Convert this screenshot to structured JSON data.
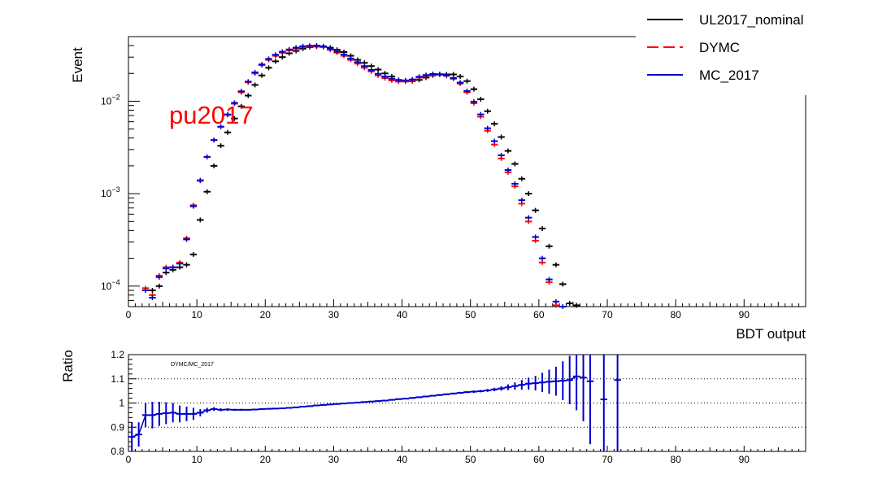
{
  "chart_data": [
    {
      "type": "line",
      "ylabel": "Event",
      "xlabel": "BDT output",
      "annotation": "pu2017",
      "annotation_color": "#ff0000",
      "log_y": true,
      "xlim": [
        0,
        99
      ],
      "ylim": [
        6e-05,
        0.05
      ],
      "x_ticks": [
        0,
        10,
        20,
        30,
        40,
        50,
        60,
        70,
        80,
        90
      ],
      "y_tick_labels": [
        {
          "value": 0.0001,
          "base": "10",
          "exp": "−4"
        },
        {
          "value": 0.001,
          "base": "10",
          "exp": "−3"
        },
        {
          "value": 0.01,
          "base": "10",
          "exp": "−2"
        }
      ],
      "legend_position": "top-right",
      "series": [
        {
          "name": "UL2017_nominal",
          "color": "#000000",
          "style": "solid",
          "x": [
            3.5,
            4.5,
            5.5,
            6.5,
            7.5,
            8.5,
            9.5,
            10.5,
            11.5,
            12.5,
            13.5,
            14.5,
            15.5,
            16.5,
            17.5,
            18.5,
            19.5,
            20.5,
            21.5,
            22.5,
            23.5,
            24.5,
            25.5,
            26.5,
            27.5,
            28.5,
            29.5,
            30.5,
            31.5,
            32.5,
            33.5,
            34.5,
            35.5,
            36.5,
            37.5,
            38.5,
            39.5,
            40.5,
            41.5,
            42.5,
            43.5,
            44.5,
            45.5,
            46.5,
            47.5,
            48.5,
            49.5,
            50.5,
            51.5,
            52.5,
            53.5,
            54.5,
            55.5,
            56.5,
            57.5,
            58.5,
            59.5,
            60.5,
            61.5,
            62.5,
            63.5,
            64.5,
            65.5
          ],
          "y": [
            9e-05,
            0.0001,
            0.00014,
            0.00015,
            0.00016,
            0.00017,
            0.00022,
            0.00052,
            0.00105,
            0.002,
            0.0033,
            0.0046,
            0.0065,
            0.0088,
            0.0115,
            0.015,
            0.019,
            0.023,
            0.027,
            0.03,
            0.033,
            0.035,
            0.037,
            0.0385,
            0.039,
            0.039,
            0.038,
            0.036,
            0.034,
            0.031,
            0.028,
            0.026,
            0.024,
            0.022,
            0.02,
            0.0185,
            0.017,
            0.0165,
            0.0165,
            0.017,
            0.018,
            0.019,
            0.0195,
            0.0195,
            0.0195,
            0.0185,
            0.0165,
            0.0135,
            0.0105,
            0.0078,
            0.0057,
            0.0041,
            0.0029,
            0.0021,
            0.00145,
            0.001,
            0.00066,
            0.00042,
            0.00027,
            0.00017,
            0.000105,
            6.5e-05,
            6.2e-05
          ]
        },
        {
          "name": "DYMC",
          "color": "#ff0000",
          "style": "dashed",
          "x": [
            2.5,
            3.5,
            4.5,
            5.5,
            6.5,
            7.5,
            8.5,
            9.5,
            10.5,
            11.5,
            12.5,
            13.5,
            14.5,
            15.5,
            16.5,
            17.5,
            18.5,
            19.5,
            20.5,
            21.5,
            22.5,
            23.5,
            24.5,
            25.5,
            26.5,
            27.5,
            28.5,
            29.5,
            30.5,
            31.5,
            32.5,
            33.5,
            34.5,
            35.5,
            36.5,
            37.5,
            38.5,
            39.5,
            40.5,
            41.5,
            42.5,
            43.5,
            44.5,
            45.5,
            46.5,
            47.5,
            48.5,
            49.5,
            50.5,
            51.5,
            52.5,
            53.5,
            54.5,
            55.5,
            56.5,
            57.5,
            58.5,
            59.5,
            60.5,
            61.5,
            62.5,
            63.5,
            64.5
          ],
          "y": [
            9.5e-05,
            8e-05,
            0.00013,
            0.00016,
            0.00016,
            0.00018,
            0.00033,
            0.00075,
            0.0014,
            0.0025,
            0.0038,
            0.0053,
            0.0071,
            0.0094,
            0.0125,
            0.016,
            0.02,
            0.0245,
            0.028,
            0.031,
            0.0335,
            0.0355,
            0.037,
            0.0385,
            0.039,
            0.0395,
            0.0385,
            0.036,
            0.0335,
            0.031,
            0.028,
            0.0255,
            0.023,
            0.021,
            0.019,
            0.0178,
            0.0168,
            0.0163,
            0.0163,
            0.0168,
            0.018,
            0.0188,
            0.0193,
            0.0193,
            0.0188,
            0.0175,
            0.0155,
            0.0125,
            0.0095,
            0.0068,
            0.0048,
            0.0034,
            0.0024,
            0.0017,
            0.0012,
            0.00078,
            0.0005,
            0.00031,
            0.00018,
            0.00011,
            6.2e-05,
            5.5e-05,
            5e-05
          ]
        },
        {
          "name": "MC_2017",
          "color": "#0000cc",
          "style": "solid",
          "x": [
            2.5,
            3.5,
            4.5,
            5.5,
            6.5,
            7.5,
            8.5,
            9.5,
            10.5,
            11.5,
            12.5,
            13.5,
            14.5,
            15.5,
            16.5,
            17.5,
            18.5,
            19.5,
            20.5,
            21.5,
            22.5,
            23.5,
            24.5,
            25.5,
            26.5,
            27.5,
            28.5,
            29.5,
            30.5,
            31.5,
            32.5,
            33.5,
            34.5,
            35.5,
            36.5,
            37.5,
            38.5,
            39.5,
            40.5,
            41.5,
            42.5,
            43.5,
            44.5,
            45.5,
            46.5,
            47.5,
            48.5,
            49.5,
            50.5,
            51.5,
            52.5,
            53.5,
            54.5,
            55.5,
            56.5,
            57.5,
            58.5,
            59.5,
            60.5,
            61.5,
            62.5,
            63.5,
            64.5
          ],
          "y": [
            9e-05,
            7.5e-05,
            0.000125,
            0.000155,
            0.00016,
            0.000175,
            0.00032,
            0.00073,
            0.00138,
            0.0025,
            0.0038,
            0.0053,
            0.0072,
            0.0096,
            0.0128,
            0.0163,
            0.0205,
            0.025,
            0.0287,
            0.0318,
            0.0343,
            0.0363,
            0.038,
            0.0393,
            0.0398,
            0.04,
            0.0393,
            0.037,
            0.0345,
            0.032,
            0.029,
            0.0265,
            0.024,
            0.0218,
            0.0198,
            0.0185,
            0.0175,
            0.0169,
            0.0168,
            0.0172,
            0.0184,
            0.0192,
            0.0197,
            0.0196,
            0.0191,
            0.0178,
            0.0159,
            0.0129,
            0.0099,
            0.0072,
            0.0051,
            0.0037,
            0.0026,
            0.0018,
            0.00128,
            0.00085,
            0.00055,
            0.00034,
            0.0002,
            0.000118,
            6.8e-05,
            6e-05,
            5.5e-05
          ]
        }
      ]
    },
    {
      "type": "scatter",
      "ylabel": "Ratio",
      "annotation": "DYMC/MC_2017",
      "xlim": [
        0,
        99
      ],
      "ylim": [
        0.8,
        1.2
      ],
      "x_ticks": [
        0,
        10,
        20,
        30,
        40,
        50,
        60,
        70,
        80,
        90
      ],
      "y_ticks": [
        "0.8",
        "0.9",
        "1",
        "1.1",
        "1.2"
      ],
      "y_tick_values": [
        0.8,
        0.9,
        1.0,
        1.1,
        1.2
      ],
      "gridlines_y": [
        0.9,
        1.0,
        1.1
      ],
      "series": [
        {
          "name": "",
          "color": "#0000cc",
          "x": [
            0.5,
            1.5,
            2.5,
            3.5,
            4.5,
            5.5,
            6.5,
            7.5,
            8.5,
            9.5,
            10.5,
            11.5,
            12.5,
            13.5,
            14.5,
            15.5,
            16.5,
            17.5,
            18.5,
            19.5,
            20.5,
            21.5,
            22.5,
            23.5,
            24.5,
            25.5,
            26.5,
            27.5,
            28.5,
            29.5,
            30.5,
            31.5,
            32.5,
            33.5,
            34.5,
            35.5,
            36.5,
            37.5,
            38.5,
            39.5,
            40.5,
            41.5,
            42.5,
            43.5,
            44.5,
            45.5,
            46.5,
            47.5,
            48.5,
            49.5,
            50.5,
            51.5,
            52.5,
            53.5,
            54.5,
            55.5,
            56.5,
            57.5,
            58.5,
            59.5,
            60.5,
            61.5,
            62.5,
            63.5,
            64.5,
            65.5,
            66.5,
            67.5,
            69.5,
            71.5
          ],
          "y": [
            0.86,
            0.87,
            0.95,
            0.95,
            0.955,
            0.958,
            0.96,
            0.955,
            0.955,
            0.955,
            0.96,
            0.97,
            0.975,
            0.972,
            0.973,
            0.972,
            0.972,
            0.972,
            0.973,
            0.975,
            0.976,
            0.977,
            0.978,
            0.98,
            0.982,
            0.985,
            0.987,
            0.99,
            0.992,
            0.994,
            0.996,
            0.998,
            1.0,
            1.002,
            1.004,
            1.006,
            1.008,
            1.01,
            1.013,
            1.016,
            1.018,
            1.021,
            1.024,
            1.027,
            1.03,
            1.033,
            1.036,
            1.039,
            1.042,
            1.045,
            1.047,
            1.049,
            1.052,
            1.056,
            1.06,
            1.065,
            1.07,
            1.075,
            1.08,
            1.082,
            1.085,
            1.088,
            1.09,
            1.092,
            1.095,
            1.11,
            1.105,
            1.09,
            1.015,
            1.095
          ],
          "err": [
            0.06,
            0.05,
            0.05,
            0.055,
            0.05,
            0.045,
            0.04,
            0.035,
            0.03,
            0.025,
            0.015,
            0.01,
            0.008,
            0.006,
            0.005,
            0.004,
            0.004,
            0.003,
            0.003,
            0.003,
            0.003,
            0.003,
            0.003,
            0.003,
            0.003,
            0.003,
            0.003,
            0.003,
            0.003,
            0.003,
            0.003,
            0.003,
            0.003,
            0.003,
            0.003,
            0.003,
            0.003,
            0.003,
            0.003,
            0.003,
            0.003,
            0.003,
            0.003,
            0.003,
            0.003,
            0.004,
            0.004,
            0.004,
            0.004,
            0.004,
            0.005,
            0.005,
            0.006,
            0.007,
            0.009,
            0.012,
            0.015,
            0.02,
            0.025,
            0.03,
            0.04,
            0.05,
            0.06,
            0.08,
            0.1,
            0.14,
            0.18,
            0.26,
            0.3,
            0.35
          ]
        }
      ]
    }
  ]
}
